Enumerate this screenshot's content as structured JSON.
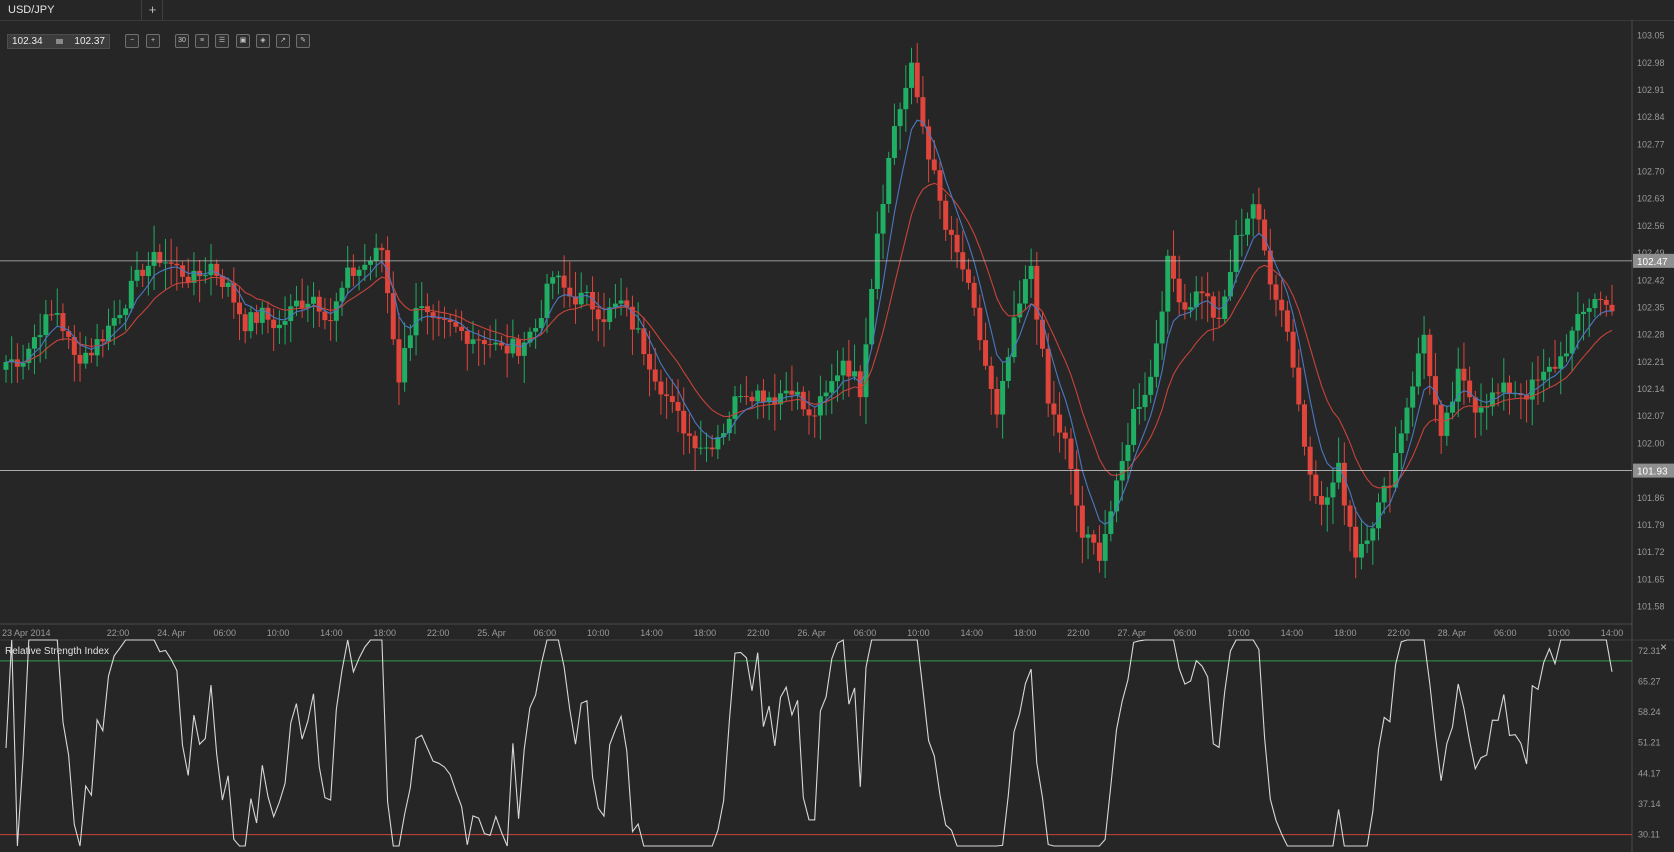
{
  "tabs": {
    "active_label": "USD/JPY",
    "add_label": "+"
  },
  "quote": {
    "bid": "102.34",
    "ask": "102.37"
  },
  "toolbar": [
    {
      "name": "zoom-out-icon",
      "glyph": "−"
    },
    {
      "name": "zoom-in-icon",
      "glyph": "+"
    },
    {
      "name": "timeframe-button",
      "glyph": "30"
    },
    {
      "name": "chart-type-icon",
      "glyph": "≡"
    },
    {
      "name": "indicators-icon",
      "glyph": "☰"
    },
    {
      "name": "studies-icon",
      "glyph": "▣"
    },
    {
      "name": "objects-icon",
      "glyph": "◈"
    },
    {
      "name": "export-icon",
      "glyph": "↗"
    },
    {
      "name": "draw-icon",
      "glyph": "✎"
    }
  ],
  "colors": {
    "background": "#262626",
    "bull": "#1fae63",
    "bear": "#e0453b",
    "ma_fast": "#4a78c2",
    "ma_slow": "#c8433a",
    "rsi_line": "#d8d8d8",
    "rsi_upper": "#2e9a4f",
    "rsi_lower": "#c8433a",
    "hline": "#bdbdbd"
  },
  "chart_data": [
    {
      "type": "candlestick",
      "title": "USD/JPY",
      "y_ticks": [
        "103.05",
        "102.98",
        "102.91",
        "102.84",
        "102.77",
        "102.70",
        "102.63",
        "102.56",
        "102.49",
        "102.42",
        "102.35",
        "102.28",
        "102.21",
        "102.14",
        "102.07",
        "102.00",
        "101.93",
        "101.86",
        "101.79",
        "101.72",
        "101.65",
        "101.58"
      ],
      "ylim": [
        101.535,
        103.085
      ],
      "x_tick_labels": [
        "23 Apr 2014",
        "22:00",
        "24. Apr",
        "06:00",
        "10:00",
        "14:00",
        "18:00",
        "22:00",
        "25. Apr",
        "06:00",
        "10:00",
        "14:00",
        "18:00",
        "22:00",
        "26. Apr",
        "06:00",
        "10:00",
        "14:00",
        "18:00",
        "22:00",
        "27. Apr",
        "06:00",
        "10:00",
        "14:00",
        "18:00",
        "22:00",
        "28. Apr",
        "06:00",
        "10:00",
        "14:00"
      ],
      "horizontal_levels": [
        {
          "value": 102.47,
          "label": "102.47"
        },
        {
          "value": 101.93,
          "label": "101.93"
        }
      ],
      "close_anchors": [
        102.21,
        102.22,
        102.3,
        102.34,
        102.22,
        102.24,
        102.3,
        102.37,
        102.45,
        102.48,
        102.45,
        102.42,
        102.46,
        102.4,
        102.31,
        102.33,
        102.3,
        102.36,
        102.38,
        102.32,
        102.43,
        102.46,
        102.5,
        102.17,
        102.36,
        102.3,
        102.3,
        102.28,
        102.27,
        102.24,
        102.25,
        102.3,
        102.43,
        102.38,
        102.37,
        102.33,
        102.36,
        102.28,
        102.18,
        102.09,
        102.02,
        101.99,
        102.04,
        102.14,
        102.13,
        102.12,
        102.15,
        102.06,
        102.12,
        102.22,
        102.14,
        102.55,
        102.82,
        102.96,
        102.75,
        102.55,
        102.45,
        102.27,
        102.06,
        102.3,
        102.46,
        102.1,
        102.0,
        101.76,
        101.72,
        101.88,
        102.08,
        102.17,
        102.46,
        102.35,
        102.4,
        102.3,
        102.52,
        102.62,
        102.43,
        102.3,
        102.0,
        101.83,
        101.93,
        101.72,
        101.8,
        101.91,
        102.1,
        102.28,
        102.0,
        102.17,
        102.1,
        102.12,
        102.14,
        102.13,
        102.17,
        102.22,
        102.31,
        102.38,
        102.34
      ],
      "rsi_panel": {
        "title": "Relative Strength Index",
        "y_ticks": [
          "72.31",
          "65.27",
          "58.24",
          "51.21",
          "44.17",
          "37.14",
          "30.11"
        ],
        "ylim": [
          27.5,
          74.8
        ],
        "upper_level": 70.0,
        "lower_level": 30.11
      }
    }
  ]
}
